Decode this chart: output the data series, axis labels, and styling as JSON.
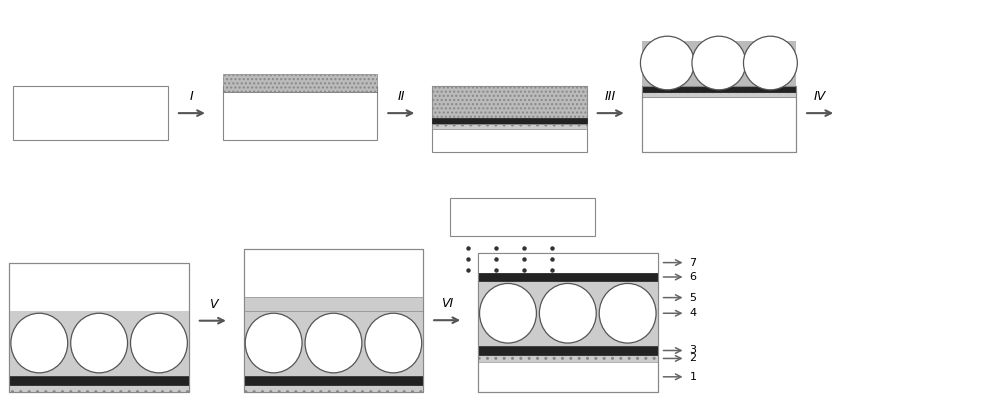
{
  "fig_width": 10.0,
  "fig_height": 4.08,
  "bg_color": "#ffffff",
  "substrate_color": "#ffffff",
  "substrate_edge": "#888888",
  "black_layer_color": "#222222",
  "dotted_layer_color": "#bbbbbb",
  "thin_dotted_color": "#cccccc",
  "sphere_fill": "#ffffff",
  "sphere_edge": "#555555",
  "arrow_color": "#555555",
  "text_color": "#000000",
  "label_I": "I",
  "label_II": "II",
  "label_III": "III",
  "label_IV": "IV",
  "label_V": "V",
  "label_VI": "VI",
  "layer_labels": [
    "1",
    "2",
    "3",
    "4",
    "5",
    "6",
    "7"
  ]
}
